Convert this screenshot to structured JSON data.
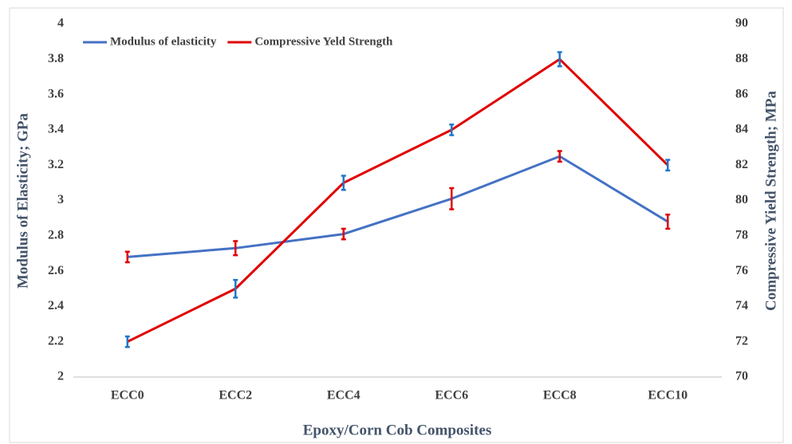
{
  "chart_data": {
    "type": "line",
    "x_label": "Epoxy/Corn Cob Composites",
    "y_label": "Modulus of Elasticity; GPa",
    "y2_label": "Compressive Yield Strength; MPa",
    "categories": [
      "ECC0",
      "ECC2",
      "ECC4",
      "ECC6",
      "ECC8",
      "ECC10"
    ],
    "series": [
      {
        "name": "Modulus of elasticity",
        "color": "#4472c4",
        "error_color": "#e00000",
        "values": [
          2.68,
          2.73,
          2.81,
          3.01,
          3.25,
          2.88
        ],
        "errors": [
          0.03,
          0.04,
          0.03,
          0.06,
          0.03,
          0.04
        ]
      },
      {
        "name": "Compressive Yeld Strength",
        "color": "#e00000",
        "error_color": "#1f78c8",
        "axis": "y2",
        "values": [
          72,
          75,
          81,
          84,
          88,
          82
        ],
        "errors": [
          0.3,
          0.5,
          0.4,
          0.3,
          0.4,
          0.3
        ]
      }
    ],
    "ylim": [
      2,
      4
    ],
    "yticks": [
      2,
      2.2,
      2.4,
      2.6,
      2.8,
      3,
      3.2,
      3.4,
      3.6,
      3.8,
      4
    ],
    "y2lim": [
      70,
      90
    ],
    "y2ticks": [
      70,
      72,
      74,
      76,
      78,
      80,
      82,
      84,
      86,
      88,
      90
    ],
    "legend": "top-left"
  }
}
